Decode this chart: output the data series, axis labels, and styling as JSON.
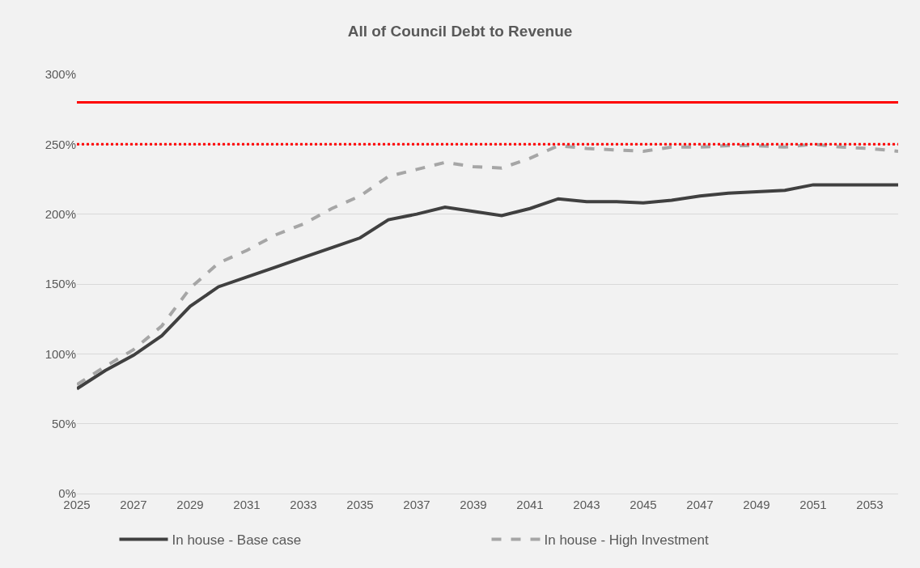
{
  "chart_data": {
    "type": "line",
    "title": "All of Council Debt to Revenue",
    "x": [
      2025,
      2026,
      2027,
      2028,
      2029,
      2030,
      2031,
      2032,
      2033,
      2034,
      2035,
      2036,
      2037,
      2038,
      2039,
      2040,
      2041,
      2042,
      2043,
      2044,
      2045,
      2046,
      2047,
      2048,
      2049,
      2050,
      2051,
      2052,
      2053,
      2054
    ],
    "series": [
      {
        "name": "In house - Base case",
        "color": "#404040",
        "line_style": "solid",
        "values": [
          75,
          88,
          99,
          113,
          134,
          148,
          155,
          162,
          169,
          176,
          183,
          196,
          200,
          205,
          202,
          199,
          204,
          211,
          209,
          209,
          208,
          210,
          213,
          215,
          216,
          217,
          221,
          221,
          221,
          221
        ]
      },
      {
        "name": "In house - High Investment",
        "color": "#a6a6a6",
        "line_style": "dashed",
        "values": [
          78,
          91,
          103,
          120,
          147,
          165,
          174,
          185,
          193,
          204,
          213,
          227,
          232,
          237,
          234,
          233,
          240,
          249,
          247,
          246,
          245,
          248,
          248,
          249,
          249,
          248,
          250,
          248,
          247,
          245
        ]
      }
    ],
    "xlim": [
      2025,
      2054
    ],
    "xticks": [
      2025,
      2027,
      2029,
      2031,
      2033,
      2035,
      2037,
      2039,
      2041,
      2043,
      2045,
      2047,
      2049,
      2051,
      2053
    ],
    "ylim": [
      0,
      300
    ],
    "yticks": [
      {
        "value": 0,
        "label": "0%"
      },
      {
        "value": 50,
        "label": "50%"
      },
      {
        "value": 100,
        "label": "100%"
      },
      {
        "value": 150,
        "label": "150%"
      },
      {
        "value": 200,
        "label": "200%"
      },
      {
        "value": 250,
        "label": "250%"
      },
      {
        "value": 300,
        "label": "300%"
      }
    ],
    "ref_lines": [
      {
        "axis": "y",
        "value": 280,
        "color": "#ff0000",
        "line_style": "solid"
      },
      {
        "axis": "y",
        "value": 250,
        "color": "#ff0000",
        "line_style": "dotted"
      }
    ],
    "grid": "y",
    "legend": "bottom"
  }
}
